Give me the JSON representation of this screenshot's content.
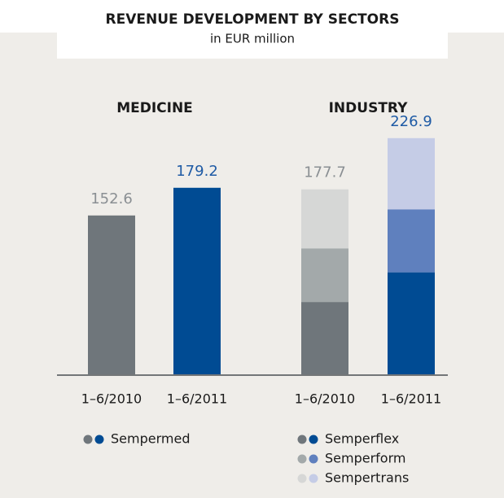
{
  "chart_data": {
    "type": "stacked_bar",
    "title": "REVENUE DEVELOPMENT BY SECTORS",
    "subtitle": "in EUR million",
    "ylim": [
      0,
      240
    ],
    "groups": [
      {
        "name": "MEDICINE",
        "categories": [
          "1–6/2010",
          "1–6/2011"
        ],
        "label_colors": [
          "#8a8f93",
          "#1f5ba5"
        ],
        "series": [
          {
            "name": "Sempermed",
            "colors": [
              "#6f767b",
              "#004b93"
            ],
            "values": [
              152.6,
              179.2
            ]
          }
        ]
      },
      {
        "name": "INDUSTRY",
        "categories": [
          "1–6/2010",
          "1–6/2011"
        ],
        "label_colors": [
          "#8a8f93",
          "#1f5ba5"
        ],
        "totals": [
          177.7,
          226.9
        ],
        "series": [
          {
            "name": "Semperflex",
            "colors": [
              "#6f767b",
              "#004b93"
            ],
            "values": [
              69.5,
              98.0
            ]
          },
          {
            "name": "Semperform",
            "colors": [
              "#a3a9aa",
              "#5f80be"
            ],
            "values": [
              51.5,
              60.5
            ]
          },
          {
            "name": "Sempertrans",
            "colors": [
              "#d6d7d6",
              "#c5cce6"
            ],
            "values": [
              56.7,
              68.4
            ]
          }
        ]
      }
    ]
  }
}
